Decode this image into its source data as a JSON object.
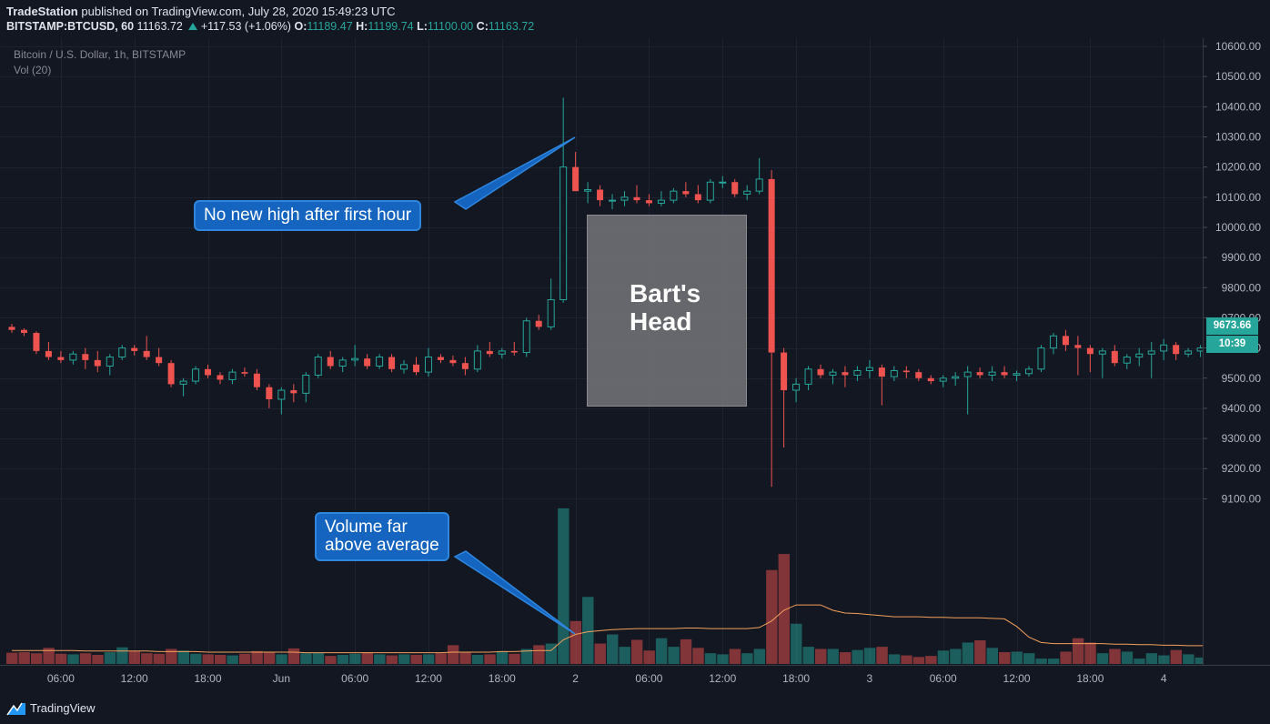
{
  "header": {
    "publisher": "TradeStation",
    "published_text": "published on TradingView.com, July 28, 2020 15:49:23 UTC",
    "symbol": "BITSTAMP:BTCUSD, 60",
    "last": "11163.72",
    "change": "+117.53 (+1.06%)",
    "o_label": "O:",
    "o_value": "11189.47",
    "h_label": "H:",
    "h_value": "11199.74",
    "l_label": "L:",
    "l_value": "11100.00",
    "c_label": "C:",
    "c_value": "11163.72"
  },
  "legend": {
    "series_title": "Bitcoin / U.S. Dollar, 1h, BITSTAMP",
    "volume_title": "Vol (20)"
  },
  "annotations": {
    "callout_high": "No new high after first hour",
    "callout_volume_line1": "Volume far",
    "callout_volume_line2": "above average",
    "box_line1": "Bart's",
    "box_line2": "Head"
  },
  "price_tag": {
    "price": "9673.66",
    "countdown": "10:39"
  },
  "footer": {
    "brand": "TradingView"
  },
  "colors": {
    "background": "#131722",
    "up": "#26a69a",
    "down": "#ef5350",
    "volume_ma": "#f5a05a",
    "grid": "#1e2230",
    "callout": "#1565c0"
  },
  "chart_data": {
    "type": "candlestick",
    "y_axis": {
      "range": [
        9050,
        10650
      ],
      "ticks": [
        9100,
        9200,
        9300,
        9400,
        9500,
        9600,
        9700,
        9800,
        9900,
        10000,
        10100,
        10200,
        10300,
        10400,
        10500,
        10600
      ],
      "tick_labels": [
        "9100.00",
        "9200.00",
        "9300.00",
        "9400.00",
        "9500.00",
        "9600.00",
        "9700.00",
        "9800.00",
        "9900.00",
        "10000.00",
        "10100.00",
        "10200.00",
        "10300.00",
        "10400.00",
        "10500.00",
        "10600.00"
      ]
    },
    "x_axis": {
      "labels": [
        {
          "bar": 4,
          "text": "06:00"
        },
        {
          "bar": 10,
          "text": "12:00"
        },
        {
          "bar": 16,
          "text": "18:00"
        },
        {
          "bar": 22,
          "text": "Jun"
        },
        {
          "bar": 28,
          "text": "06:00"
        },
        {
          "bar": 34,
          "text": "12:00"
        },
        {
          "bar": 40,
          "text": "18:00"
        },
        {
          "bar": 46,
          "text": "2"
        },
        {
          "bar": 52,
          "text": "06:00"
        },
        {
          "bar": 58,
          "text": "12:00"
        },
        {
          "bar": 64,
          "text": "18:00"
        },
        {
          "bar": 70,
          "text": "3"
        },
        {
          "bar": 76,
          "text": "06:00"
        },
        {
          "bar": 82,
          "text": "12:00"
        },
        {
          "bar": 88,
          "text": "18:00"
        },
        {
          "bar": 94,
          "text": "4"
        }
      ]
    },
    "candles": [
      [
        9670,
        9680,
        9650,
        9660
      ],
      [
        9660,
        9665,
        9640,
        9650
      ],
      [
        9650,
        9655,
        9580,
        9590
      ],
      [
        9590,
        9620,
        9560,
        9570
      ],
      [
        9570,
        9590,
        9550,
        9560
      ],
      [
        9560,
        9590,
        9545,
        9580
      ],
      [
        9580,
        9600,
        9530,
        9560
      ],
      [
        9560,
        9590,
        9520,
        9540
      ],
      [
        9540,
        9580,
        9510,
        9570
      ],
      [
        9570,
        9610,
        9560,
        9600
      ],
      [
        9600,
        9610,
        9575,
        9590
      ],
      [
        9590,
        9640,
        9560,
        9570
      ],
      [
        9570,
        9600,
        9540,
        9550
      ],
      [
        9550,
        9560,
        9470,
        9480
      ],
      [
        9480,
        9500,
        9440,
        9490
      ],
      [
        9490,
        9540,
        9480,
        9530
      ],
      [
        9530,
        9545,
        9500,
        9510
      ],
      [
        9510,
        9520,
        9480,
        9495
      ],
      [
        9495,
        9530,
        9480,
        9520
      ],
      [
        9520,
        9535,
        9505,
        9515
      ],
      [
        9515,
        9530,
        9460,
        9470
      ],
      [
        9470,
        9480,
        9400,
        9430
      ],
      [
        9430,
        9470,
        9380,
        9460
      ],
      [
        9460,
        9480,
        9420,
        9450
      ],
      [
        9450,
        9520,
        9420,
        9510
      ],
      [
        9510,
        9580,
        9500,
        9570
      ],
      [
        9570,
        9590,
        9530,
        9540
      ],
      [
        9540,
        9570,
        9520,
        9560
      ],
      [
        9560,
        9610,
        9540,
        9565
      ],
      [
        9565,
        9580,
        9530,
        9540
      ],
      [
        9540,
        9580,
        9530,
        9570
      ],
      [
        9570,
        9580,
        9520,
        9530
      ],
      [
        9530,
        9560,
        9515,
        9545
      ],
      [
        9545,
        9570,
        9510,
        9520
      ],
      [
        9520,
        9600,
        9505,
        9570
      ],
      [
        9570,
        9580,
        9550,
        9560
      ],
      [
        9560,
        9575,
        9540,
        9550
      ],
      [
        9550,
        9570,
        9510,
        9530
      ],
      [
        9530,
        9610,
        9520,
        9590
      ],
      [
        9590,
        9620,
        9570,
        9580
      ],
      [
        9580,
        9600,
        9565,
        9590
      ],
      [
        9590,
        9620,
        9575,
        9585
      ],
      [
        9585,
        9700,
        9570,
        9690
      ],
      [
        9690,
        9710,
        9660,
        9670
      ],
      [
        9670,
        9830,
        9660,
        9760
      ],
      [
        9760,
        10430,
        9750,
        10200
      ],
      [
        10200,
        10250,
        10120,
        10120
      ],
      [
        10120,
        10150,
        10080,
        10125
      ],
      [
        10125,
        10140,
        10070,
        10090
      ],
      [
        10090,
        10110,
        10060,
        10090
      ],
      [
        10090,
        10120,
        10070,
        10100
      ],
      [
        10100,
        10140,
        10080,
        10090
      ],
      [
        10090,
        10110,
        10070,
        10080
      ],
      [
        10080,
        10120,
        10070,
        10090
      ],
      [
        10090,
        10130,
        10080,
        10120
      ],
      [
        10120,
        10150,
        10100,
        10110
      ],
      [
        10110,
        10140,
        10080,
        10090
      ],
      [
        10090,
        10160,
        10080,
        10150
      ],
      [
        10150,
        10170,
        10130,
        10150
      ],
      [
        10150,
        10160,
        10100,
        10110
      ],
      [
        10110,
        10140,
        10090,
        10120
      ],
      [
        10120,
        10230,
        10110,
        10160
      ],
      [
        10160,
        10190,
        9140,
        9585
      ],
      [
        9585,
        9600,
        9270,
        9460
      ],
      [
        9460,
        9500,
        9420,
        9480
      ],
      [
        9480,
        9540,
        9460,
        9530
      ],
      [
        9530,
        9545,
        9500,
        9510
      ],
      [
        9510,
        9530,
        9480,
        9520
      ],
      [
        9520,
        9540,
        9470,
        9510
      ],
      [
        9510,
        9540,
        9490,
        9525
      ],
      [
        9525,
        9560,
        9500,
        9535
      ],
      [
        9535,
        9545,
        9410,
        9505
      ],
      [
        9505,
        9540,
        9490,
        9525
      ],
      [
        9525,
        9540,
        9500,
        9520
      ],
      [
        9520,
        9530,
        9490,
        9500
      ],
      [
        9500,
        9510,
        9480,
        9490
      ],
      [
        9490,
        9510,
        9470,
        9500
      ],
      [
        9500,
        9520,
        9475,
        9505
      ],
      [
        9505,
        9540,
        9380,
        9520
      ],
      [
        9520,
        9535,
        9500,
        9510
      ],
      [
        9510,
        9540,
        9490,
        9520
      ],
      [
        9520,
        9540,
        9500,
        9510
      ],
      [
        9510,
        9525,
        9490,
        9515
      ],
      [
        9515,
        9540,
        9505,
        9530
      ],
      [
        9530,
        9610,
        9520,
        9600
      ],
      [
        9600,
        9650,
        9580,
        9640
      ],
      [
        9640,
        9660,
        9590,
        9610
      ],
      [
        9610,
        9640,
        9510,
        9600
      ],
      [
        9600,
        9610,
        9520,
        9580
      ],
      [
        9580,
        9600,
        9500,
        9590
      ],
      [
        9590,
        9610,
        9540,
        9550
      ],
      [
        9550,
        9580,
        9530,
        9570
      ],
      [
        9570,
        9600,
        9540,
        9580
      ],
      [
        9580,
        9620,
        9500,
        9590
      ],
      [
        9590,
        9630,
        9560,
        9610
      ],
      [
        9610,
        9620,
        9560,
        9580
      ],
      [
        9580,
        9600,
        9570,
        9590
      ],
      [
        9590,
        9610,
        9570,
        9600
      ],
      [
        9600,
        9640,
        9560,
        9630
      ],
      [
        9630,
        9700,
        9610,
        9675
      ],
      [
        9675,
        9690,
        9620,
        9630
      ],
      [
        9630,
        9660,
        9610,
        9650
      ],
      [
        9650,
        9690,
        9640,
        9673.66
      ]
    ],
    "volume": [
      21,
      22,
      20,
      30,
      19,
      18,
      20,
      17,
      22,
      31,
      24,
      20,
      19,
      28,
      25,
      19,
      18,
      17,
      16,
      19,
      24,
      22,
      18,
      29,
      20,
      21,
      15,
      17,
      19,
      22,
      18,
      16,
      18,
      17,
      18,
      20,
      35,
      22,
      17,
      18,
      24,
      19,
      28,
      35,
      38,
      290,
      80,
      125,
      38,
      55,
      32,
      45,
      25,
      48,
      32,
      46,
      30,
      20,
      18,
      28,
      20,
      28,
      175,
      205,
      75,
      32,
      28,
      28,
      22,
      26,
      30,
      32,
      18,
      16,
      13,
      15,
      25,
      28,
      40,
      44,
      30,
      22,
      23,
      20,
      10,
      10,
      23,
      48,
      40,
      20,
      28,
      23,
      10,
      20,
      16,
      26,
      18,
      12,
      38,
      20,
      12,
      10,
      9
    ],
    "volume_ma_series": [
      25,
      25,
      25,
      25,
      25,
      25,
      24,
      24,
      24,
      24,
      24,
      24,
      23,
      23,
      23,
      23,
      22,
      22,
      22,
      22,
      22,
      22,
      22,
      22,
      21,
      21,
      21,
      21,
      21,
      21,
      21,
      21,
      21,
      21,
      21,
      21,
      22,
      22,
      22,
      22,
      23,
      23,
      24,
      25,
      25,
      45,
      55,
      60,
      62,
      64,
      65,
      66,
      66,
      66,
      66,
      67,
      67,
      66,
      66,
      66,
      66,
      68,
      80,
      100,
      110,
      110,
      110,
      100,
      95,
      94,
      92,
      90,
      88,
      88,
      88,
      87,
      87,
      86,
      86,
      86,
      85,
      84,
      70,
      50,
      40,
      38,
      38,
      38,
      38,
      38,
      37,
      37,
      36,
      36,
      35,
      35,
      34,
      34,
      34,
      34,
      33,
      33,
      33
    ]
  }
}
